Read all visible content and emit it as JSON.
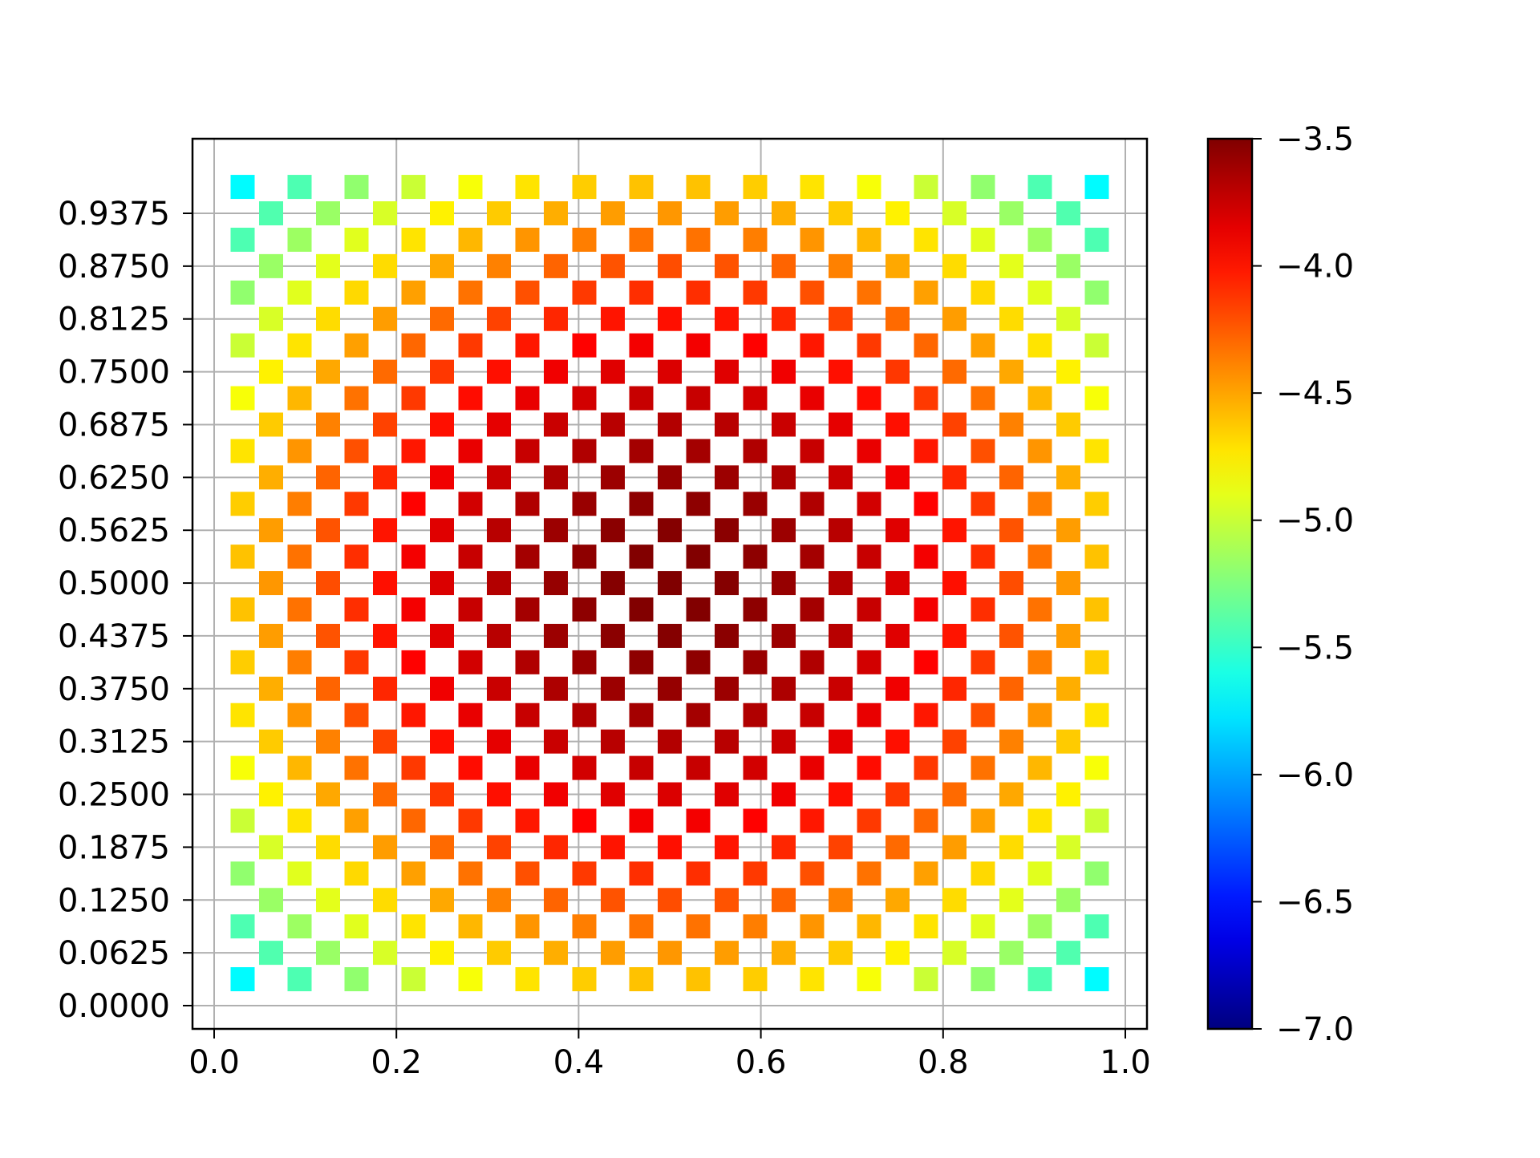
{
  "chart_data": {
    "type": "scatter",
    "marker": "square",
    "colormap": "jet",
    "grid": true,
    "xlim": [
      0.0,
      1.0
    ],
    "ylim": [
      0.0,
      1.0
    ],
    "xticks": [
      "0.0",
      "0.2",
      "0.4",
      "0.6",
      "0.8",
      "1.0"
    ],
    "yticks": [
      "0.0000",
      "0.0625",
      "0.1250",
      "0.1875",
      "0.2500",
      "0.3125",
      "0.3750",
      "0.4375",
      "0.5000",
      "0.5625",
      "0.6250",
      "0.6875",
      "0.7500",
      "0.8125",
      "0.8750",
      "0.9375"
    ],
    "colorbar": {
      "min": -7.0,
      "max": -3.5,
      "ticks": [
        "−3.5",
        "−4.0",
        "−4.5",
        "−5.0",
        "−5.5",
        "−6.0",
        "−6.5",
        "−7.0"
      ],
      "tick_values": [
        -3.5,
        -4.0,
        -4.5,
        -5.0,
        -5.5,
        -6.0,
        -6.5,
        -7.0
      ],
      "colors": [
        "#000080",
        "#0000ff",
        "#00ffff",
        "#ffff00",
        "#ff0000",
        "#800000"
      ]
    },
    "points_estimate": "values v(x,y) read off the colorbar, approx. -3.5 at the centre (0.5, 0.5) falling to about -6.0 at the corners",
    "grid_points": {
      "x": [
        0.03125,
        0.0625,
        0.09375,
        0.125,
        0.15625,
        0.1875,
        0.21875,
        0.25,
        0.28125,
        0.3125,
        0.34375,
        0.375,
        0.40625,
        0.4375,
        0.46875,
        0.5,
        0.53125,
        0.5625,
        0.59375,
        0.625,
        0.65625,
        0.6875,
        0.71875,
        0.75,
        0.78125,
        0.8125,
        0.84375,
        0.875,
        0.90625,
        0.9375,
        0.96875
      ],
      "y": [
        0.03125,
        0.0625,
        0.09375,
        0.125,
        0.15625,
        0.1875,
        0.21875,
        0.25,
        0.28125,
        0.3125,
        0.34375,
        0.375,
        0.40625,
        0.4375,
        0.46875,
        0.5,
        0.53125,
        0.5625,
        0.59375,
        0.625,
        0.65625,
        0.6875,
        0.71875,
        0.75,
        0.78125,
        0.8125,
        0.84375,
        0.875,
        0.90625,
        0.9375,
        0.96875
      ],
      "checkerboard": true
    }
  }
}
